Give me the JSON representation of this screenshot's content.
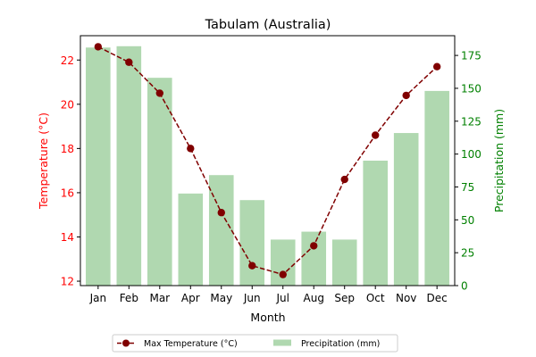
{
  "chart_data": {
    "type": "bar",
    "title": "Tabulam (Australia)",
    "xlabel": "Month",
    "categories": [
      "Jan",
      "Feb",
      "Mar",
      "Apr",
      "May",
      "Jun",
      "Jul",
      "Aug",
      "Sep",
      "Oct",
      "Nov",
      "Dec"
    ],
    "left_axis": {
      "label": "Temperature (°C)",
      "color": "#ff0000",
      "ylim": [
        11.8,
        23.1
      ],
      "ticks": [
        12,
        14,
        16,
        18,
        20,
        22
      ]
    },
    "right_axis": {
      "label": "Precipitation (mm)",
      "color": "#008000",
      "ylim": [
        0,
        190
      ],
      "ticks": [
        0,
        25,
        50,
        75,
        100,
        125,
        150,
        175
      ]
    },
    "series": [
      {
        "name": "Max Temperature (°C)",
        "type": "line",
        "axis": "left",
        "color": "#800000",
        "values": [
          22.6,
          21.9,
          20.5,
          18.0,
          15.1,
          12.7,
          12.3,
          13.6,
          16.6,
          18.6,
          20.4,
          21.7
        ]
      },
      {
        "name": "Precipitation (mm)",
        "type": "bar",
        "axis": "right",
        "color": "#b0d8b0",
        "values": [
          181,
          182,
          158,
          70,
          84,
          65,
          35,
          41,
          35,
          95,
          116,
          148
        ]
      }
    ],
    "legend": {
      "placement": "bottom-center"
    },
    "grid": false
  }
}
